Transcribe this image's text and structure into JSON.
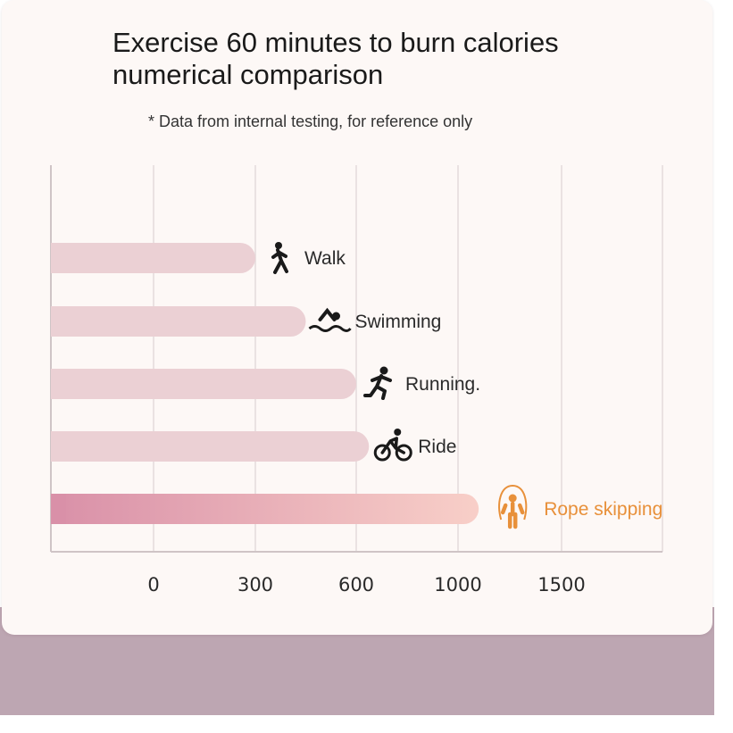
{
  "title_lines": [
    "Exercise 60 minutes to burn calories",
    "numerical comparison"
  ],
  "subtitle": "* Data from internal testing, for reference only",
  "colors": {
    "bar": "#ebd0d4",
    "highlight_bar_start": "#d990a8",
    "highlight_bar_end": "#f8cfc8",
    "highlight_text": "#e8903a",
    "icon": "#1a1a1a",
    "grid": "#e4dadc"
  },
  "chart_data": {
    "type": "bar",
    "orientation": "horizontal",
    "title": "Exercise 60 minutes to burn calories numerical comparison",
    "subtitle": "* Data from internal testing, for reference only",
    "xlabel": "",
    "ylabel": "",
    "x_ticks": [
      "0",
      "300",
      "600",
      "1000",
      "1500"
    ],
    "categories": [
      "Walk",
      "Swimming",
      "Running.",
      "Ride",
      "Rope skipping"
    ],
    "icons": [
      "walking-person-icon",
      "swimmer-icon",
      "runner-icon",
      "cyclist-icon",
      "rope-skipping-icon"
    ],
    "values": [
      300,
      450,
      600,
      650,
      1100
    ],
    "highlight": "Rope skipping",
    "grid": true,
    "legend": "none"
  }
}
